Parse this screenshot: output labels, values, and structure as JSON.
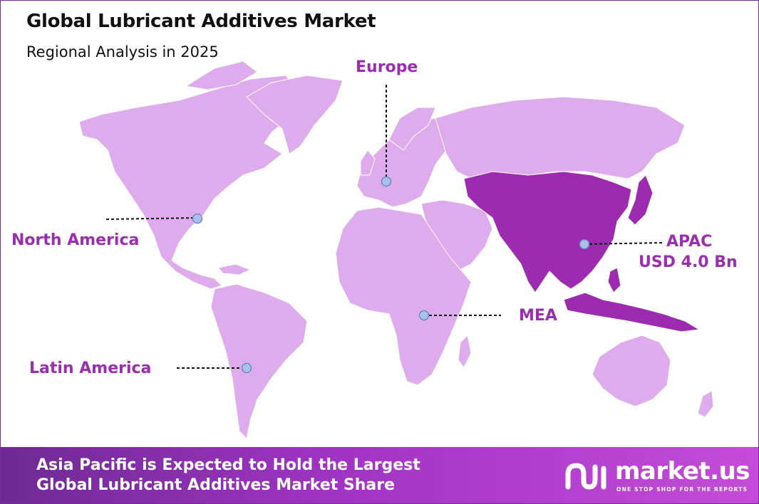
{
  "title": "Global Lubricant Additives Market",
  "subtitle": "Regional Analysis in 2025",
  "regions": [
    {
      "name": "North America"
    },
    {
      "name": "Europe"
    },
    {
      "name": "APAC",
      "value": "USD 4.0 Bn"
    },
    {
      "name": "MEA"
    },
    {
      "name": "Latin America"
    }
  ],
  "footer": {
    "line1": "Asia Pacific is Expected to Hold the Largest",
    "line2": "Global Lubricant Additives Market Share"
  },
  "brand": {
    "name": "market.us",
    "tagline": "ONE STOP SHOP FOR THE REPORTS"
  },
  "colors": {
    "land": "#deabec",
    "highlight": "#9c2bb0",
    "label": "#9b2db0",
    "marker": "#a9c0e8"
  }
}
